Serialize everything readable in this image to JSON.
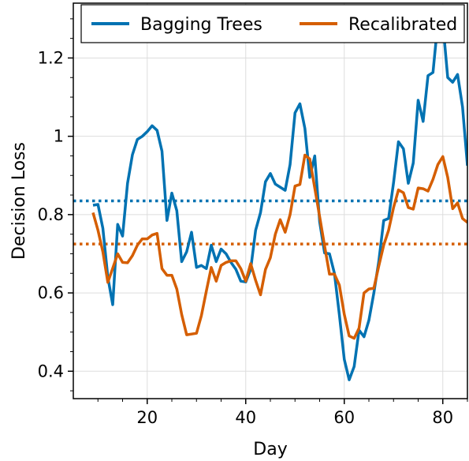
{
  "chart_data": {
    "type": "line",
    "title": "",
    "xlabel": "Day",
    "ylabel": "Decision Loss",
    "xlim": [
      5,
      85
    ],
    "ylim": [
      0.33,
      1.34
    ],
    "xticks": [
      20,
      40,
      60,
      80
    ],
    "yticks": [
      0.4,
      0.6,
      0.8,
      1.0,
      1.2
    ],
    "xtick_labels": [
      "20",
      "40",
      "60",
      "80"
    ],
    "ytick_labels": [
      "0.4",
      "0.6",
      "0.8",
      "1",
      "1.2"
    ],
    "grid": true,
    "legend_position": "top",
    "series": [
      {
        "name": "Bagging Trees",
        "color": "#0072b2",
        "mean": 0.835,
        "x": [
          9,
          10,
          11,
          12,
          13,
          14,
          15,
          16,
          17,
          18,
          19,
          20,
          21,
          22,
          23,
          24,
          25,
          26,
          27,
          28,
          29,
          30,
          31,
          32,
          33,
          34,
          35,
          36,
          37,
          38,
          39,
          40,
          41,
          42,
          43,
          44,
          45,
          46,
          47,
          48,
          49,
          50,
          51,
          52,
          53,
          54,
          55,
          56,
          57,
          58,
          59,
          60,
          61,
          62,
          63,
          64,
          65,
          66,
          67,
          68,
          69,
          70,
          71,
          72,
          73,
          74,
          75,
          76,
          77,
          78,
          79,
          80,
          81,
          82,
          83,
          84,
          85
        ],
        "values": [
          0.824,
          0.826,
          0.765,
          0.64,
          0.57,
          0.775,
          0.745,
          0.88,
          0.953,
          0.992,
          1.0,
          1.012,
          1.027,
          1.015,
          0.962,
          0.785,
          0.855,
          0.81,
          0.68,
          0.705,
          0.755,
          0.665,
          0.67,
          0.662,
          0.722,
          0.68,
          0.712,
          0.7,
          0.678,
          0.66,
          0.63,
          0.628,
          0.66,
          0.76,
          0.805,
          0.884,
          0.905,
          0.878,
          0.87,
          0.862,
          0.928,
          1.06,
          1.083,
          1.02,
          0.895,
          0.95,
          0.782,
          0.702,
          0.7,
          0.65,
          0.545,
          0.43,
          0.378,
          0.412,
          0.505,
          0.488,
          0.53,
          0.6,
          0.68,
          0.785,
          0.79,
          0.882,
          0.986,
          0.968,
          0.88,
          0.932,
          1.092,
          1.038,
          1.155,
          1.163,
          1.292,
          1.29,
          1.15,
          1.138,
          1.158,
          1.075,
          0.925
        ]
      },
      {
        "name": "Recalibrated",
        "color": "#d55e00",
        "mean": 0.725,
        "x": [
          9,
          10,
          11,
          12,
          13,
          14,
          15,
          16,
          17,
          18,
          19,
          20,
          21,
          22,
          23,
          24,
          25,
          26,
          27,
          28,
          29,
          30,
          31,
          32,
          33,
          34,
          35,
          36,
          37,
          38,
          39,
          40,
          41,
          42,
          43,
          44,
          45,
          46,
          47,
          48,
          49,
          50,
          51,
          52,
          53,
          54,
          55,
          56,
          57,
          58,
          59,
          60,
          61,
          62,
          63,
          64,
          65,
          66,
          67,
          68,
          69,
          70,
          71,
          72,
          73,
          74,
          75,
          76,
          77,
          78,
          79,
          80,
          81,
          82,
          83,
          84,
          85
        ],
        "values": [
          0.805,
          0.76,
          0.705,
          0.627,
          0.663,
          0.7,
          0.678,
          0.677,
          0.695,
          0.722,
          0.738,
          0.738,
          0.748,
          0.752,
          0.662,
          0.645,
          0.645,
          0.61,
          0.545,
          0.493,
          0.495,
          0.497,
          0.542,
          0.605,
          0.665,
          0.63,
          0.67,
          0.678,
          0.682,
          0.682,
          0.662,
          0.63,
          0.675,
          0.632,
          0.595,
          0.66,
          0.69,
          0.75,
          0.787,
          0.755,
          0.8,
          0.873,
          0.877,
          0.952,
          0.942,
          0.868,
          0.795,
          0.72,
          0.648,
          0.648,
          0.62,
          0.545,
          0.49,
          0.484,
          0.51,
          0.6,
          0.61,
          0.612,
          0.668,
          0.722,
          0.76,
          0.818,
          0.863,
          0.856,
          0.818,
          0.814,
          0.868,
          0.866,
          0.86,
          0.89,
          0.928,
          0.948,
          0.895,
          0.815,
          0.83,
          0.79,
          0.78
        ]
      }
    ]
  }
}
